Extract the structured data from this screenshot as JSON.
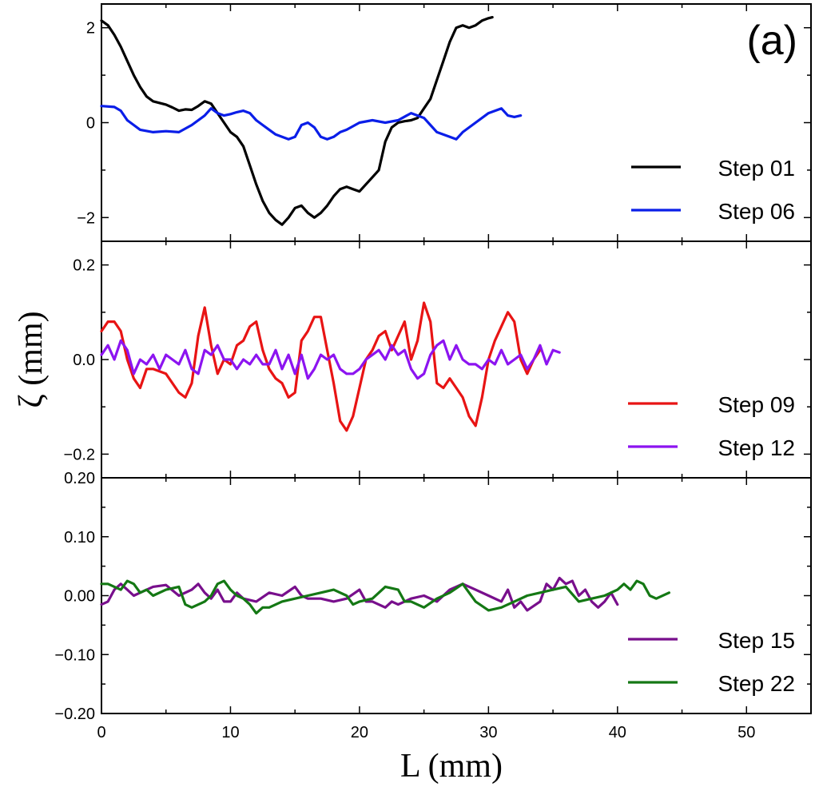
{
  "chart_data": {
    "type": "line",
    "panel_tag": "(a)",
    "xlabel": "L (mm)",
    "ylabel": "ζ (mm)",
    "xlim": [
      0,
      55
    ],
    "x_ticks": [
      0,
      10,
      20,
      30,
      40,
      50
    ],
    "x_tick_labels": [
      "0",
      "10",
      "20",
      "30",
      "40",
      "50"
    ],
    "panels": [
      {
        "id": "top",
        "ylim": [
          -2.5,
          2.5
        ],
        "y_ticks": [
          -2,
          0,
          2
        ],
        "y_tick_labels": [
          "−2",
          "0",
          "2"
        ],
        "legend_position": "bottom-right",
        "series": [
          {
            "name": "Step 01",
            "color": "#000000",
            "x": [
              0,
              0.5,
              1,
              1.5,
              2,
              2.5,
              3,
              3.5,
              4,
              5,
              5.5,
              6,
              6.5,
              7,
              7.5,
              8,
              8.5,
              9,
              9.5,
              10,
              10.5,
              11,
              11.5,
              12,
              12.5,
              13,
              13.5,
              14,
              14.5,
              15,
              15.5,
              16,
              16.5,
              17,
              17.5,
              18,
              18.5,
              19,
              19.5,
              20,
              20.5,
              21,
              21.5,
              22,
              22.5,
              23,
              23.5,
              24,
              24.5,
              25,
              25.5,
              26,
              26.5,
              27,
              27.5,
              28,
              28.5,
              29,
              29.5,
              30,
              30.3
            ],
            "y": [
              2.15,
              2.05,
              1.85,
              1.6,
              1.3,
              1.0,
              0.75,
              0.55,
              0.45,
              0.38,
              0.32,
              0.25,
              0.28,
              0.27,
              0.35,
              0.45,
              0.4,
              0.2,
              0.0,
              -0.2,
              -0.3,
              -0.5,
              -0.9,
              -1.3,
              -1.65,
              -1.9,
              -2.05,
              -2.15,
              -2.0,
              -1.8,
              -1.75,
              -1.9,
              -2.0,
              -1.9,
              -1.75,
              -1.55,
              -1.4,
              -1.35,
              -1.4,
              -1.45,
              -1.3,
              -1.15,
              -1.0,
              -0.4,
              -0.1,
              0.0,
              0.03,
              0.05,
              0.1,
              0.3,
              0.5,
              0.9,
              1.3,
              1.7,
              2.0,
              2.05,
              2.0,
              2.05,
              2.15,
              2.2,
              2.22
            ]
          },
          {
            "name": "Step 06",
            "color": "#0a1ee8",
            "x": [
              0,
              1,
              1.5,
              2,
              2.5,
              3,
              4,
              5,
              6,
              7,
              8,
              8.5,
              9,
              9.5,
              10,
              10.5,
              11,
              11.5,
              12,
              12.5,
              13,
              13.5,
              14,
              14.5,
              15,
              15.5,
              16,
              16.5,
              17,
              17.5,
              18,
              18.5,
              19,
              20,
              21,
              22,
              23,
              24,
              25,
              25.5,
              26,
              27,
              27.5,
              28,
              29,
              30,
              31,
              31.5,
              32,
              32.5
            ],
            "y": [
              0.35,
              0.33,
              0.25,
              0.05,
              -0.05,
              -0.15,
              -0.2,
              -0.18,
              -0.2,
              -0.05,
              0.15,
              0.3,
              0.2,
              0.15,
              0.18,
              0.22,
              0.25,
              0.2,
              0.05,
              -0.05,
              -0.15,
              -0.25,
              -0.3,
              -0.35,
              -0.3,
              -0.05,
              0.0,
              -0.1,
              -0.3,
              -0.35,
              -0.3,
              -0.2,
              -0.15,
              0.0,
              0.05,
              0.0,
              0.05,
              0.2,
              0.1,
              -0.05,
              -0.2,
              -0.3,
              -0.35,
              -0.2,
              0.0,
              0.2,
              0.3,
              0.15,
              0.12,
              0.15
            ]
          }
        ]
      },
      {
        "id": "middle",
        "ylim": [
          -0.25,
          0.25
        ],
        "y_ticks": [
          -0.2,
          0.0,
          0.2
        ],
        "y_tick_labels": [
          "−0.2",
          "0.0",
          "0.2"
        ],
        "legend_position": "bottom-right",
        "series": [
          {
            "name": "Step 09",
            "color": "#e81414",
            "x": [
              0,
              0.5,
              1,
              1.5,
              2,
              2.5,
              3,
              3.5,
              4,
              5,
              6,
              6.5,
              7,
              7.5,
              8,
              8.5,
              9,
              9.5,
              10,
              10.5,
              11,
              11.5,
              12,
              12.5,
              13,
              13.5,
              14,
              14.5,
              15,
              15.5,
              16,
              16.5,
              17,
              17.5,
              18,
              18.5,
              19,
              19.5,
              20,
              20.5,
              21,
              21.5,
              22,
              22.5,
              23,
              23.5,
              24,
              24.5,
              25,
              25.5,
              26,
              26.5,
              27,
              27.5,
              28,
              28.5,
              29,
              29.5,
              30,
              30.5,
              31,
              31.5,
              32,
              32.5,
              33,
              33.5,
              34
            ],
            "y": [
              0.06,
              0.08,
              0.08,
              0.06,
              0.0,
              -0.04,
              -0.06,
              -0.02,
              -0.02,
              -0.03,
              -0.07,
              -0.08,
              -0.05,
              0.05,
              0.11,
              0.03,
              -0.03,
              0.0,
              -0.01,
              0.03,
              0.04,
              0.07,
              0.08,
              0.02,
              -0.02,
              -0.04,
              -0.05,
              -0.08,
              -0.07,
              0.04,
              0.06,
              0.09,
              0.09,
              0.02,
              -0.05,
              -0.13,
              -0.15,
              -0.12,
              -0.06,
              0.0,
              0.02,
              0.05,
              0.06,
              0.02,
              0.05,
              0.08,
              0.0,
              0.04,
              0.12,
              0.08,
              -0.05,
              -0.06,
              -0.04,
              -0.06,
              -0.08,
              -0.12,
              -0.14,
              -0.08,
              0.0,
              0.04,
              0.07,
              0.1,
              0.08,
              0.0,
              -0.03,
              0.0,
              0.02
            ]
          },
          {
            "name": "Step 12",
            "color": "#8c14f0",
            "x": [
              0,
              0.5,
              1,
              1.5,
              2,
              2.5,
              3,
              3.5,
              4,
              4.5,
              5,
              5.5,
              6,
              6.5,
              7,
              7.5,
              8,
              8.5,
              9,
              9.5,
              10,
              10.5,
              11,
              11.5,
              12,
              12.5,
              13,
              13.5,
              14,
              14.5,
              15,
              15.5,
              16,
              16.5,
              17,
              17.5,
              18,
              18.5,
              19,
              19.5,
              20,
              20.5,
              21,
              21.5,
              22,
              22.5,
              23,
              23.5,
              24,
              24.5,
              25,
              25.5,
              26,
              26.5,
              27,
              27.5,
              28,
              28.5,
              29,
              29.5,
              30,
              30.5,
              31,
              31.5,
              32,
              32.5,
              33,
              33.5,
              34,
              34.5,
              35,
              35.5
            ],
            "y": [
              0.01,
              0.03,
              0.0,
              0.04,
              0.02,
              -0.03,
              0.0,
              -0.01,
              0.01,
              -0.02,
              0.01,
              0.0,
              -0.01,
              0.02,
              -0.02,
              -0.03,
              0.02,
              0.01,
              0.03,
              0.0,
              0.0,
              -0.02,
              0.0,
              -0.01,
              0.01,
              -0.01,
              -0.01,
              0.02,
              -0.02,
              0.01,
              -0.03,
              0.01,
              -0.04,
              -0.02,
              0.01,
              0.0,
              0.01,
              -0.02,
              -0.03,
              -0.03,
              -0.02,
              0.0,
              0.01,
              0.02,
              0.0,
              0.03,
              0.01,
              0.02,
              -0.02,
              -0.04,
              -0.03,
              0.01,
              0.03,
              0.04,
              0.0,
              0.03,
              0.0,
              -0.01,
              -0.01,
              -0.02,
              0.0,
              -0.01,
              0.02,
              -0.01,
              0.0,
              0.01,
              -0.02,
              0.0,
              0.03,
              -0.01,
              0.02,
              0.015
            ]
          }
        ]
      },
      {
        "id": "bottom",
        "ylim": [
          -0.2,
          0.2
        ],
        "y_ticks": [
          -0.2,
          -0.1,
          0.0,
          0.1,
          0.2
        ],
        "y_tick_labels": [
          "−0.20",
          "−0.10",
          "0.00",
          "0.10",
          "0.20"
        ],
        "legend_position": "bottom-right",
        "series": [
          {
            "name": "Step 15",
            "color": "#780f8c",
            "x": [
              0,
              0.5,
              1,
              1.5,
              2,
              2.5,
              3,
              4,
              5,
              6,
              7,
              7.5,
              8,
              8.5,
              9,
              9.5,
              10,
              10.5,
              11,
              12,
              13,
              14,
              15,
              15.5,
              16,
              17,
              18,
              19,
              20,
              20.5,
              21,
              22,
              22.5,
              23,
              24,
              25,
              26,
              27,
              28,
              29,
              30,
              31,
              31.5,
              32,
              32.5,
              33,
              34,
              34.5,
              35,
              35.5,
              36,
              36.5,
              37,
              37.5,
              38,
              38.5,
              39,
              39.5,
              40
            ],
            "y": [
              -0.015,
              -0.01,
              0.01,
              0.02,
              0.01,
              0.0,
              0.005,
              0.015,
              0.018,
              0.0,
              0.01,
              0.02,
              0.005,
              -0.005,
              0.01,
              -0.01,
              -0.01,
              0.005,
              -0.005,
              -0.01,
              0.005,
              0.0,
              0.015,
              0.0,
              -0.005,
              -0.005,
              -0.01,
              -0.005,
              0.01,
              -0.01,
              -0.01,
              -0.02,
              -0.01,
              -0.015,
              -0.005,
              0.0,
              -0.01,
              0.01,
              0.02,
              0.01,
              0.0,
              -0.01,
              0.01,
              -0.02,
              -0.01,
              -0.025,
              -0.01,
              0.02,
              0.01,
              0.03,
              0.02,
              0.025,
              0.0,
              0.01,
              -0.01,
              -0.02,
              -0.01,
              0.005,
              -0.015
            ]
          },
          {
            "name": "Step 22",
            "color": "#147814",
            "x": [
              0,
              0.5,
              1,
              1.5,
              2,
              2.5,
              3,
              3.5,
              4,
              5,
              6,
              6.5,
              7,
              8,
              8.5,
              9,
              9.5,
              10,
              10.5,
              11,
              11.5,
              12,
              12.5,
              13,
              14,
              15,
              16,
              17,
              18,
              19,
              19.5,
              20,
              21,
              22,
              23,
              23.5,
              24,
              25,
              26,
              27,
              28,
              29,
              30,
              31,
              32,
              33,
              34,
              35,
              36,
              37,
              38,
              39,
              40,
              40.5,
              41,
              41.5,
              42,
              42.5,
              43,
              44
            ],
            "y": [
              0.02,
              0.02,
              0.015,
              0.01,
              0.025,
              0.02,
              0.005,
              0.01,
              0.0,
              0.01,
              0.015,
              -0.015,
              -0.02,
              -0.01,
              0.0,
              0.02,
              0.025,
              0.01,
              0.0,
              -0.005,
              -0.015,
              -0.03,
              -0.02,
              -0.02,
              -0.01,
              -0.005,
              0.0,
              0.005,
              0.01,
              0.0,
              -0.015,
              -0.01,
              -0.005,
              0.015,
              0.01,
              -0.01,
              -0.01,
              -0.02,
              -0.005,
              0.005,
              0.02,
              -0.01,
              -0.025,
              -0.02,
              -0.01,
              0.0,
              0.005,
              0.01,
              0.015,
              -0.01,
              -0.005,
              0.0,
              0.01,
              0.02,
              0.01,
              0.025,
              0.02,
              0.0,
              -0.005,
              0.005
            ]
          }
        ]
      }
    ]
  }
}
